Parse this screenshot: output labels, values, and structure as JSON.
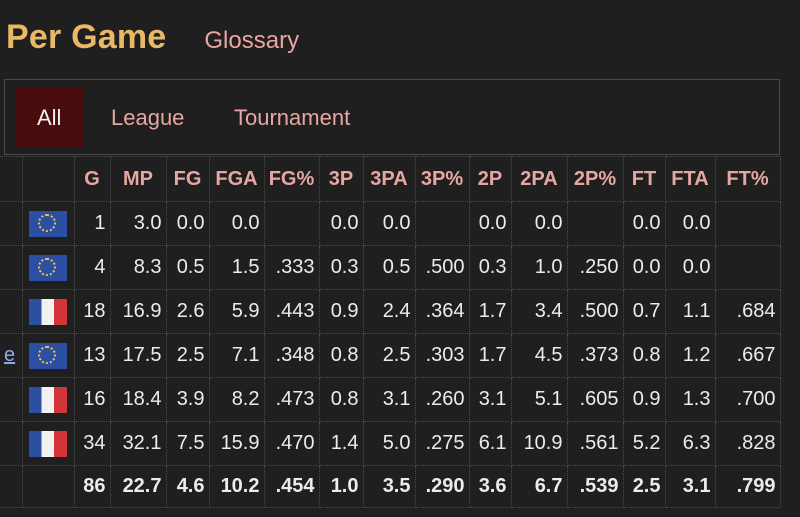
{
  "header": {
    "title": "Per Game",
    "glossary": "Glossary"
  },
  "tabs": [
    {
      "label": "All",
      "active": true
    },
    {
      "label": "League",
      "active": false
    },
    {
      "label": "Tournament",
      "active": false
    }
  ],
  "table": {
    "columns": [
      "G",
      "MP",
      "FG",
      "FGA",
      "FG%",
      "3P",
      "3PA",
      "3P%",
      "2P",
      "2PA",
      "2P%",
      "FT",
      "FTA",
      "FT%"
    ],
    "rows": [
      {
        "stub": "",
        "flag": "eu-flag-icon",
        "cells": [
          "1",
          "3.0",
          "0.0",
          "0.0",
          "",
          "0.0",
          "0.0",
          "",
          "0.0",
          "0.0",
          "",
          "0.0",
          "0.0",
          ""
        ]
      },
      {
        "stub": "",
        "flag": "eu-flag-icon",
        "cells": [
          "4",
          "8.3",
          "0.5",
          "1.5",
          ".333",
          "0.3",
          "0.5",
          ".500",
          "0.3",
          "1.0",
          ".250",
          "0.0",
          "0.0",
          ""
        ]
      },
      {
        "stub": "",
        "flag": "france-flag-icon",
        "cells": [
          "18",
          "16.9",
          "2.6",
          "5.9",
          ".443",
          "0.9",
          "2.4",
          ".364",
          "1.7",
          "3.4",
          ".500",
          "0.7",
          "1.1",
          ".684"
        ]
      },
      {
        "stub": "e",
        "flag": "eu-flag-icon",
        "cells": [
          "13",
          "17.5",
          "2.5",
          "7.1",
          ".348",
          "0.8",
          "2.5",
          ".303",
          "1.7",
          "4.5",
          ".373",
          "0.8",
          "1.2",
          ".667"
        ]
      },
      {
        "stub": "",
        "flag": "france-flag-icon",
        "cells": [
          "16",
          "18.4",
          "3.9",
          "8.2",
          ".473",
          "0.8",
          "3.1",
          ".260",
          "3.1",
          "5.1",
          ".605",
          "0.9",
          "1.3",
          ".700"
        ]
      },
      {
        "stub": "",
        "flag": "france-flag-icon",
        "cells": [
          "34",
          "32.1",
          "7.5",
          "15.9",
          ".470",
          "1.4",
          "5.0",
          ".275",
          "6.1",
          "10.9",
          ".561",
          "5.2",
          "6.3",
          ".828"
        ]
      }
    ],
    "total": [
      "86",
      "22.7",
      "4.6",
      "10.2",
      ".454",
      "1.0",
      "3.5",
      ".290",
      "3.6",
      "6.7",
      ".539",
      "2.5",
      "3.1",
      ".799"
    ]
  },
  "colors": {
    "accent_title": "#e8b866",
    "accent_link": "#e8a6a2",
    "active_tab_bg": "#4a0d0d",
    "background": "#1f1f1f"
  }
}
